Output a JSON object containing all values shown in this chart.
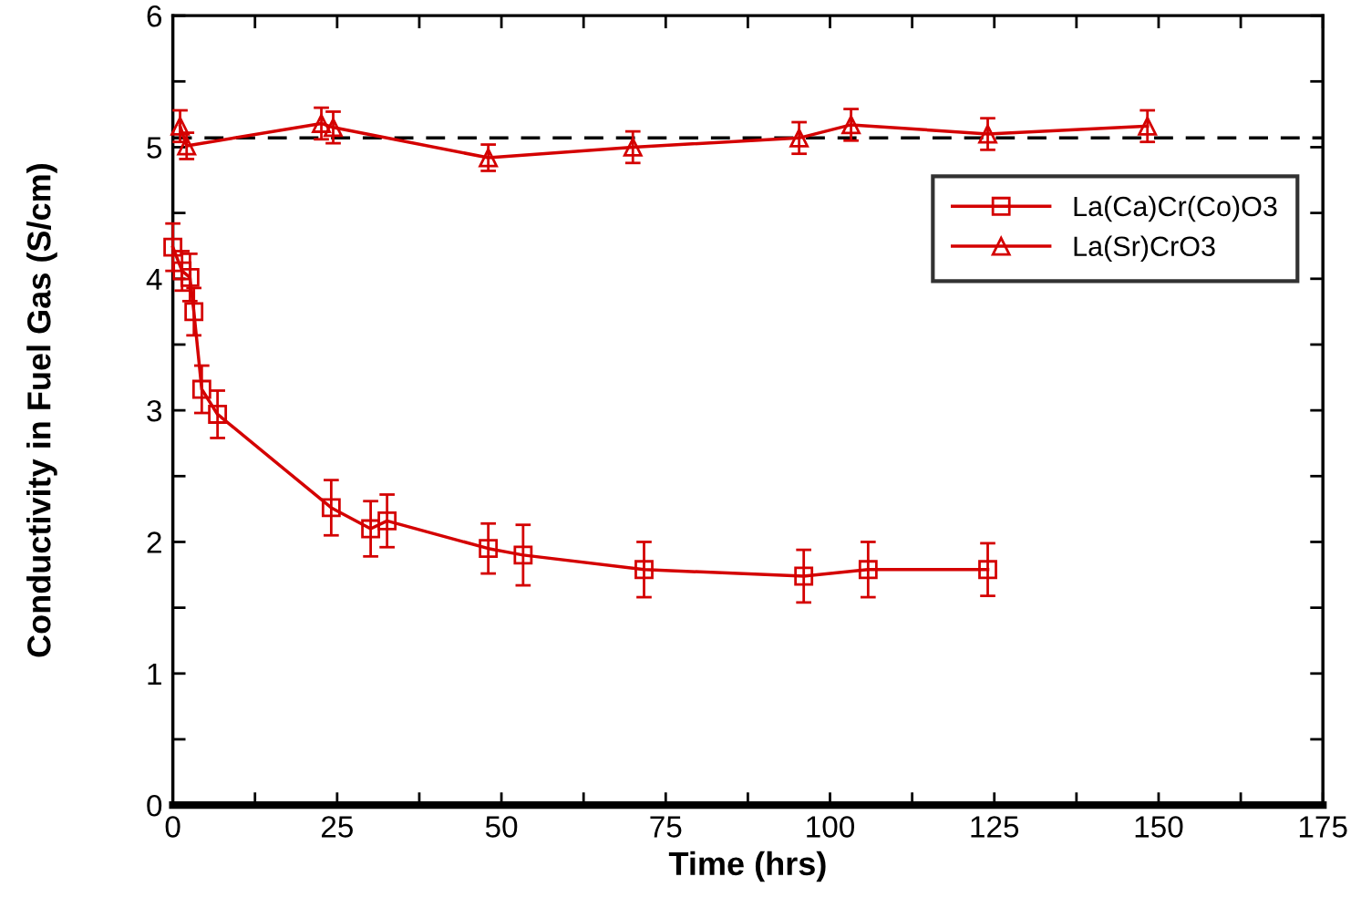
{
  "chart_data": {
    "type": "line",
    "xlabel": "Time (hrs)",
    "ylabel": "Conductivity in Fuel Gas (S/cm)",
    "xlim": [
      0,
      175
    ],
    "ylim": [
      0,
      6
    ],
    "xticks": [
      0,
      {
        "value": 12.5,
        "label": null
      },
      25,
      {
        "value": 37.5,
        "label": null
      },
      50,
      {
        "value": 62.5,
        "label": null
      },
      75,
      {
        "value": 87.5,
        "label": null
      },
      100,
      {
        "value": 112.5,
        "label": null
      },
      125,
      {
        "value": 137.5,
        "label": null
      },
      150,
      {
        "value": 162.5,
        "label": null
      },
      175
    ],
    "yticks": [
      0,
      {
        "value": 0.5,
        "label": null
      },
      1,
      {
        "value": 1.5,
        "label": null
      },
      2,
      {
        "value": 2.5,
        "label": null
      },
      3,
      {
        "value": 3.5,
        "label": null
      },
      4,
      {
        "value": 4.5,
        "label": null
      },
      5,
      {
        "value": 5.5,
        "label": null
      },
      6
    ],
    "grid": false,
    "legend": "right",
    "line_style": "solid",
    "ref_lines": [
      {
        "axis": "y",
        "value": 5.07,
        "color": "#000000",
        "line_style": "dashed"
      }
    ],
    "series": [
      {
        "name": "La(Ca)Cr(Co)O3",
        "color": "#d40000",
        "marker": "square",
        "x": [
          0,
          1.4,
          2.6,
          3.2,
          4.4,
          6.8,
          24.1,
          30.1,
          32.6,
          48,
          53.3,
          71.7,
          96,
          105.8,
          124
        ],
        "values": [
          4.24,
          4.06,
          4.01,
          3.75,
          3.16,
          2.97,
          2.26,
          2.1,
          2.16,
          1.95,
          1.9,
          1.79,
          1.74,
          1.79,
          1.79
        ],
        "errors": [
          0.18,
          0.15,
          0.18,
          0.18,
          0.18,
          0.18,
          0.21,
          0.21,
          0.2,
          0.19,
          0.23,
          0.21,
          0.2,
          0.21,
          0.2
        ]
      },
      {
        "name": "La(Sr)CrO3",
        "color": "#d40000",
        "marker": "triangle",
        "x": [
          1.1,
          2.1,
          22.6,
          24.4,
          48,
          70,
          95.3,
          103.2,
          124,
          148.3
        ],
        "values": [
          5.16,
          5.01,
          5.18,
          5.15,
          4.92,
          5.0,
          5.07,
          5.17,
          5.1,
          5.16
        ],
        "errors": [
          0.12,
          0.1,
          0.12,
          0.12,
          0.1,
          0.12,
          0.12,
          0.12,
          0.12,
          0.12
        ]
      }
    ]
  }
}
